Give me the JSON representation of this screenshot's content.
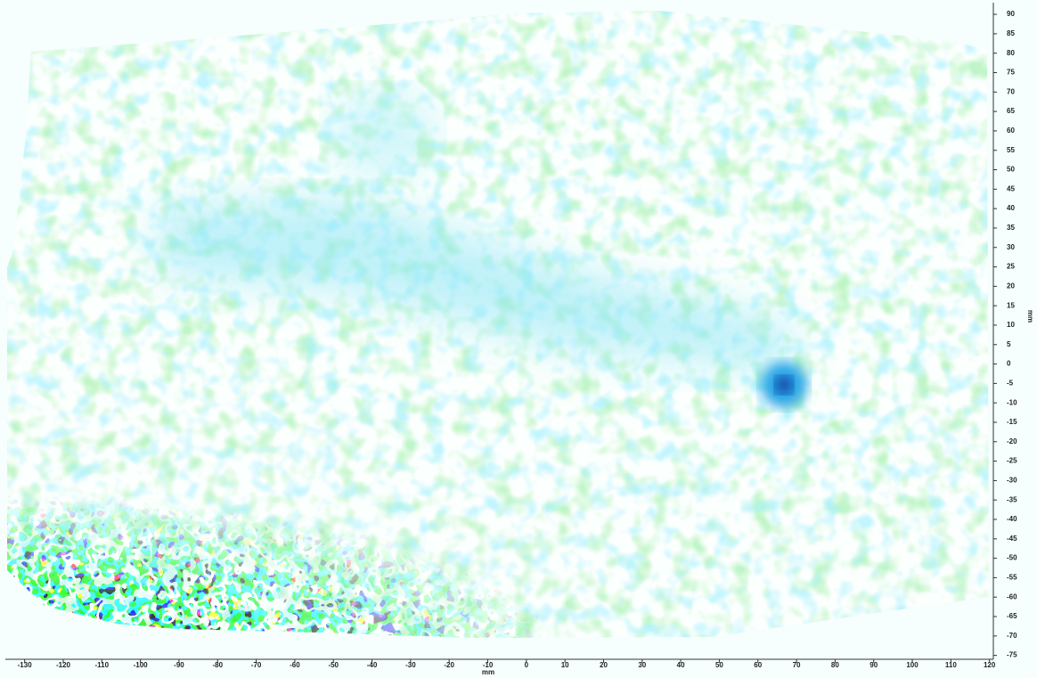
{
  "chart_data": {
    "type": "heatmap",
    "xlabel": "mm",
    "ylabel": "mm",
    "xlim": [
      -135,
      121
    ],
    "ylim": [
      -76,
      93
    ],
    "xticks": [
      -130,
      -120,
      -110,
      -100,
      -90,
      -80,
      -70,
      -60,
      -50,
      -40,
      -30,
      -20,
      -10,
      0,
      10,
      20,
      30,
      40,
      50,
      60,
      70,
      80,
      90,
      100,
      110,
      120
    ],
    "yticks": [
      -75,
      -70,
      -65,
      -60,
      -55,
      -50,
      -45,
      -40,
      -35,
      -30,
      -25,
      -20,
      -15,
      -10,
      -5,
      0,
      5,
      10,
      15,
      20,
      25,
      30,
      35,
      40,
      45,
      50,
      55,
      60,
      65,
      70,
      75,
      80,
      85,
      90
    ]
  }
}
